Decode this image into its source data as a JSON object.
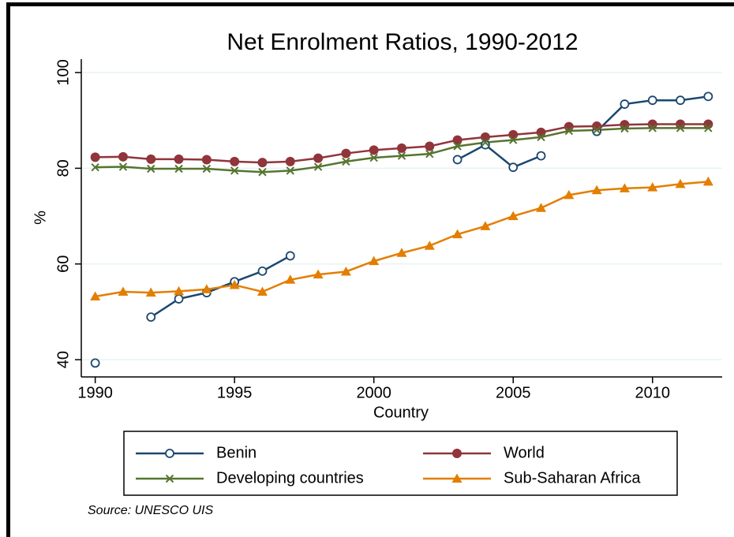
{
  "chart_data": {
    "type": "line",
    "title": "Net Enrolment Ratios, 1990-2012",
    "x_label": "Country",
    "y_label": "%",
    "source": "Source: UNESCO UIS",
    "x": [
      1990,
      1991,
      1992,
      1993,
      1994,
      1995,
      1996,
      1997,
      1998,
      1999,
      2000,
      2001,
      2002,
      2003,
      2004,
      2005,
      2006,
      2007,
      2008,
      2009,
      2010,
      2011,
      2012
    ],
    "xlim": [
      1989.5,
      2012.5
    ],
    "xticks": [
      1990,
      1995,
      2000,
      2005,
      2010
    ],
    "ylim": [
      36.4,
      102.8
    ],
    "yticks": [
      40,
      60,
      80,
      100
    ],
    "grid": true,
    "series": [
      {
        "name": "Benin",
        "color": "#1a476f",
        "marker": "hollow-circle",
        "values": [
          39.3,
          null,
          48.9,
          52.7,
          54.0,
          56.3,
          58.5,
          61.7,
          null,
          null,
          null,
          null,
          null,
          81.8,
          84.9,
          80.2,
          82.6,
          null,
          87.7,
          93.4,
          94.2,
          94.2,
          95.0
        ]
      },
      {
        "name": "World",
        "color": "#90353b",
        "marker": "circle",
        "values": [
          82.3,
          82.4,
          81.9,
          81.9,
          81.8,
          81.4,
          81.2,
          81.4,
          82.1,
          83.1,
          83.8,
          84.2,
          84.6,
          85.9,
          86.5,
          87.0,
          87.5,
          88.7,
          88.8,
          89.1,
          89.2,
          89.2,
          89.2
        ]
      },
      {
        "name": "Developing countries",
        "color": "#55752f",
        "marker": "x",
        "values": [
          80.2,
          80.3,
          79.9,
          79.9,
          79.9,
          79.5,
          79.2,
          79.5,
          80.3,
          81.4,
          82.2,
          82.6,
          83.0,
          84.6,
          85.4,
          85.9,
          86.5,
          87.8,
          88.0,
          88.3,
          88.4,
          88.4,
          88.4
        ]
      },
      {
        "name": "Sub-Saharan Africa",
        "color": "#e37e00",
        "marker": "triangle",
        "values": [
          53.2,
          54.2,
          54.0,
          54.3,
          54.7,
          55.6,
          54.2,
          56.7,
          57.8,
          58.4,
          60.6,
          62.3,
          63.8,
          66.2,
          67.9,
          70.0,
          71.7,
          74.4,
          75.4,
          75.8,
          76.0,
          76.7,
          77.2
        ]
      }
    ]
  }
}
